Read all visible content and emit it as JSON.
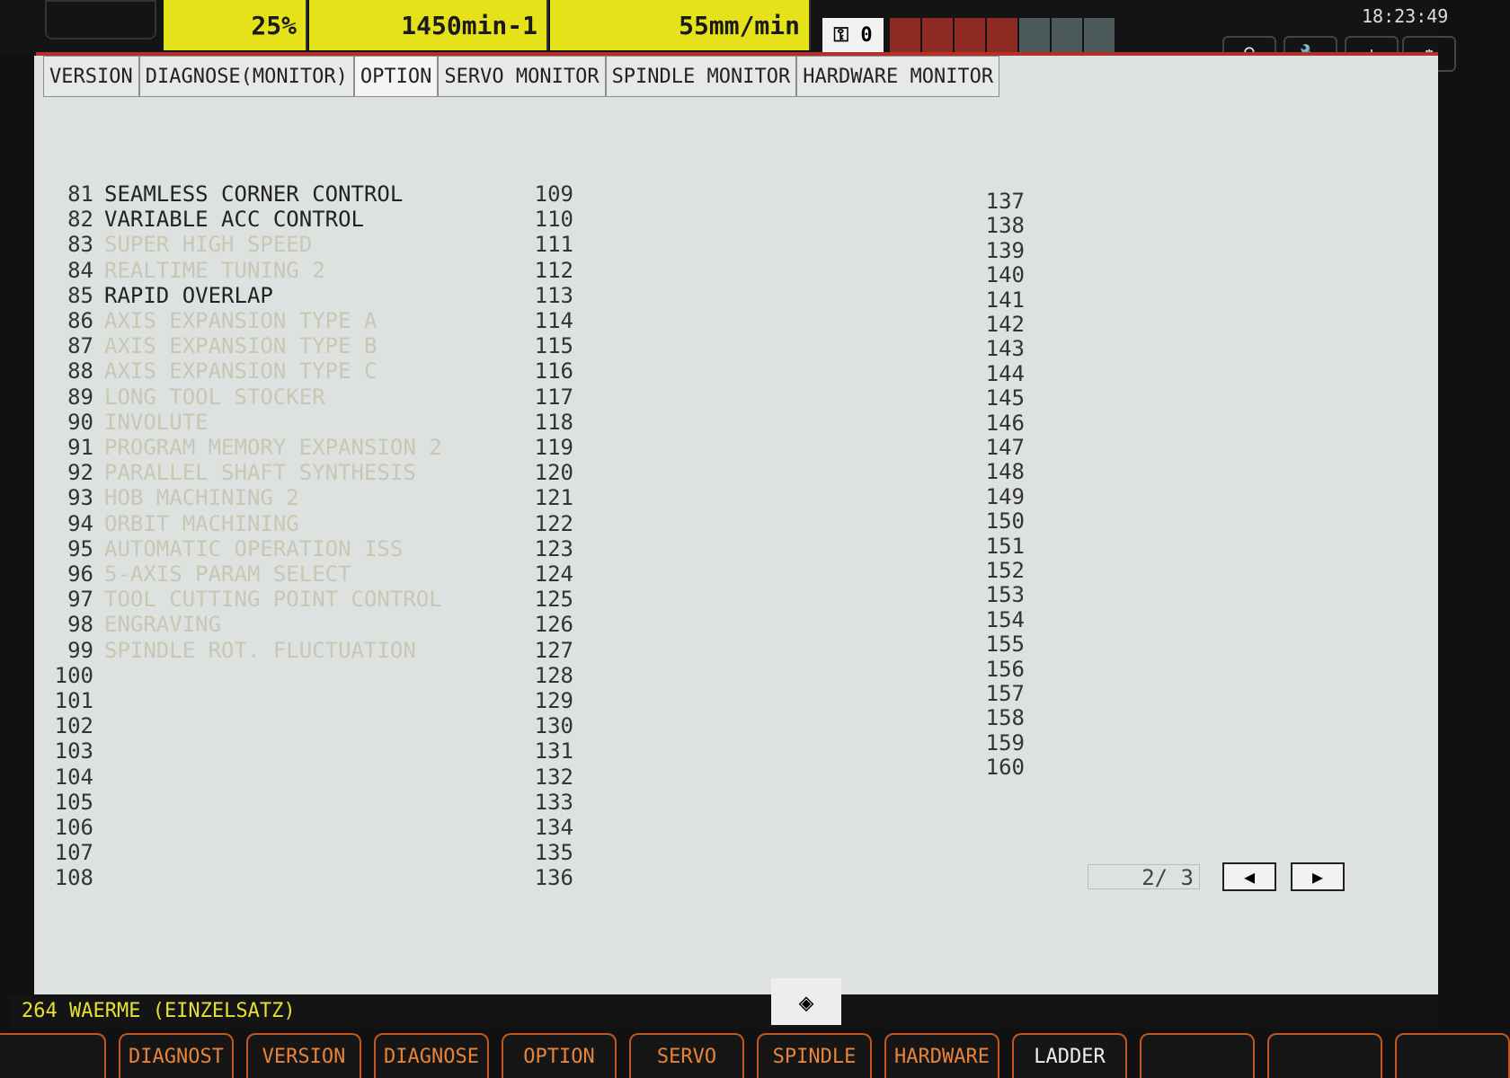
{
  "status": {
    "override": "25%",
    "spindle_speed": "1450min-1",
    "feed": "55mm/min",
    "key_count": "0",
    "time": "18:23:49",
    "colors": {
      "status_yellow": "#e6e21a",
      "accent_red": "#b3312a",
      "softkey_orange": "#e8843a"
    }
  },
  "tabs": [
    "VERSION",
    "DIAGNOSE(MONITOR)",
    "OPTION",
    "SERVO MONITOR",
    "SPINDLE MONITOR",
    "HARDWARE MONITOR"
  ],
  "options": [
    {
      "no": "81",
      "name": "SEAMLESS CORNER CONTROL",
      "enabled": true
    },
    {
      "no": "82",
      "name": "VARIABLE ACC CONTROL",
      "enabled": true
    },
    {
      "no": "83",
      "name": "SUPER HIGH SPEED",
      "enabled": false
    },
    {
      "no": "84",
      "name": "REALTIME TUNING 2",
      "enabled": false
    },
    {
      "no": "85",
      "name": "RAPID OVERLAP",
      "enabled": true
    },
    {
      "no": "86",
      "name": "AXIS EXPANSION TYPE A",
      "enabled": false
    },
    {
      "no": "87",
      "name": "AXIS EXPANSION TYPE B",
      "enabled": false
    },
    {
      "no": "88",
      "name": "AXIS EXPANSION TYPE C",
      "enabled": false
    },
    {
      "no": "89",
      "name": "LONG TOOL STOCKER",
      "enabled": false
    },
    {
      "no": "90",
      "name": "INVOLUTE",
      "enabled": false
    },
    {
      "no": "91",
      "name": "PROGRAM MEMORY EXPANSION 2",
      "enabled": false
    },
    {
      "no": "92",
      "name": "PARALLEL SHAFT SYNTHESIS",
      "enabled": false
    },
    {
      "no": "93",
      "name": "HOB MACHINING 2",
      "enabled": false
    },
    {
      "no": "94",
      "name": "ORBIT MACHINING",
      "enabled": false
    },
    {
      "no": "95",
      "name": "AUTOMATIC OPERATION ISS",
      "enabled": false
    },
    {
      "no": "96",
      "name": "5-AXIS PARAM SELECT",
      "enabled": false
    },
    {
      "no": "97",
      "name": "TOOL CUTTING POINT CONTROL",
      "enabled": false
    },
    {
      "no": "98",
      "name": "ENGRAVING",
      "enabled": false
    },
    {
      "no": "99",
      "name": "SPINDLE ROT. FLUCTUATION",
      "enabled": false
    },
    {
      "no": "100",
      "name": ""
    },
    {
      "no": "101",
      "name": ""
    },
    {
      "no": "102",
      "name": ""
    },
    {
      "no": "103",
      "name": ""
    },
    {
      "no": "104",
      "name": ""
    },
    {
      "no": "105",
      "name": ""
    },
    {
      "no": "106",
      "name": ""
    },
    {
      "no": "107",
      "name": ""
    },
    {
      "no": "108",
      "name": ""
    }
  ],
  "col2": [
    "109",
    "110",
    "111",
    "112",
    "113",
    "114",
    "115",
    "116",
    "117",
    "118",
    "119",
    "120",
    "121",
    "122",
    "123",
    "124",
    "125",
    "126",
    "127",
    "128",
    "129",
    "130",
    "131",
    "132",
    "133",
    "134",
    "135",
    "136"
  ],
  "col3": [
    "137",
    "138",
    "139",
    "140",
    "141",
    "142",
    "143",
    "144",
    "145",
    "146",
    "147",
    "148",
    "149",
    "150",
    "151",
    "152",
    "153",
    "154",
    "155",
    "156",
    "157",
    "158",
    "159",
    "160"
  ],
  "pager": {
    "text": "2/  3"
  },
  "message": "264 WAERME (EINZELSATZ)",
  "softkeys": [
    "",
    "DIAGNOST",
    "VERSION",
    "DIAGNOSE",
    "OPTION",
    "SERVO",
    "SPINDLE",
    "HARDWARE",
    "LADDER",
    "",
    "",
    ""
  ]
}
